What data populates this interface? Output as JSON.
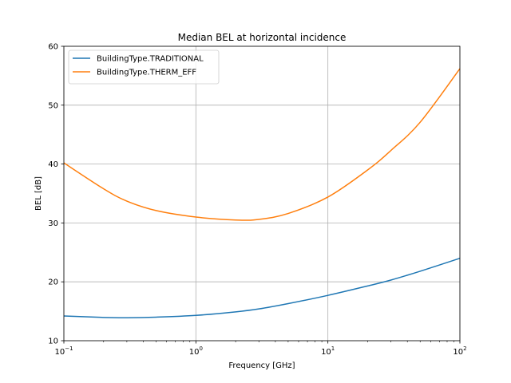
{
  "chart_data": {
    "type": "line",
    "title": "Median BEL at horizontal incidence",
    "xlabel": "Frequency [GHz]",
    "ylabel": "BEL [dB]",
    "x_scale": "log",
    "xlim": [
      0.1,
      100
    ],
    "ylim": [
      10,
      60
    ],
    "grid": true,
    "legend_position": "top-left",
    "x_ticks": [
      {
        "value": 0.1,
        "base": "10",
        "exp": "−1"
      },
      {
        "value": 1,
        "base": "10",
        "exp": "0"
      },
      {
        "value": 10,
        "base": "10",
        "exp": "1"
      },
      {
        "value": 100,
        "base": "10",
        "exp": "2"
      }
    ],
    "y_ticks": [
      "10",
      "20",
      "30",
      "40",
      "50",
      "60"
    ],
    "x": [
      0.1,
      0.2,
      0.3,
      0.5,
      1,
      2,
      3,
      5,
      10,
      20,
      30,
      50,
      100
    ],
    "series": [
      {
        "name": "BuildingType.TRADITIONAL",
        "color": "#1f77b4",
        "values": [
          14.2,
          13.95,
          13.9,
          14.0,
          14.3,
          14.9,
          15.4,
          16.3,
          17.7,
          19.3,
          20.3,
          21.8,
          24.0
        ]
      },
      {
        "name": "BuildingType.THERM_EFF",
        "color": "#ff7f0e",
        "values": [
          40.2,
          35.8,
          33.7,
          32.1,
          31.0,
          30.5,
          30.6,
          31.6,
          34.4,
          39.0,
          42.3,
          47.1,
          56.2
        ]
      }
    ]
  }
}
